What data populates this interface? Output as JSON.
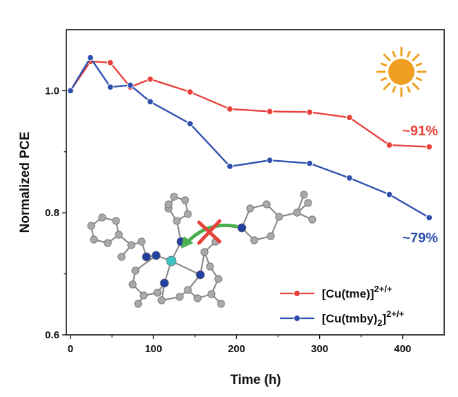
{
  "chart_data": {
    "type": "line",
    "title": "",
    "xlabel": "Time (h)",
    "ylabel": "Normalized PCE",
    "xlim": [
      -5,
      450
    ],
    "ylim": [
      0.6,
      1.1
    ],
    "xticks": [
      0,
      100,
      200,
      300,
      400
    ],
    "xtick_labels": [
      "0",
      "100",
      "200",
      "300",
      "400"
    ],
    "yticks": [
      0.6,
      0.8,
      1.0
    ],
    "ytick_labels": [
      "0.6",
      "0.8",
      "1.0"
    ],
    "grid": false,
    "legend_position": "bottom-right",
    "series": [
      {
        "name": "[Cu(tme)]",
        "name_sup": "2+/+",
        "color": "#e8413c",
        "x": [
          0,
          24,
          48,
          72,
          96,
          144,
          192,
          240,
          288,
          336,
          384,
          432
        ],
        "y": [
          1.0,
          1.048,
          1.046,
          1.006,
          1.019,
          0.998,
          0.97,
          0.966,
          0.965,
          0.956,
          0.911,
          0.908
        ],
        "annotation": "~91%"
      },
      {
        "name": "[Cu(tmby)",
        "name_sub": "2",
        "name_close": "]",
        "name_sup": "2+/+",
        "color": "#2e4fae",
        "x": [
          0,
          24,
          48,
          72,
          96,
          144,
          192,
          240,
          288,
          336,
          384,
          432
        ],
        "y": [
          1.0,
          1.054,
          1.006,
          1.009,
          0.982,
          0.946,
          0.876,
          0.886,
          0.881,
          0.857,
          0.83,
          0.792
        ],
        "annotation": "~79%"
      }
    ]
  },
  "icons": {
    "sun": "sun-icon",
    "sun_color": "#f0a020",
    "molecule": "molecule-illustration",
    "cross_color": "#e8413c",
    "arrow_color": "#4caf50"
  }
}
